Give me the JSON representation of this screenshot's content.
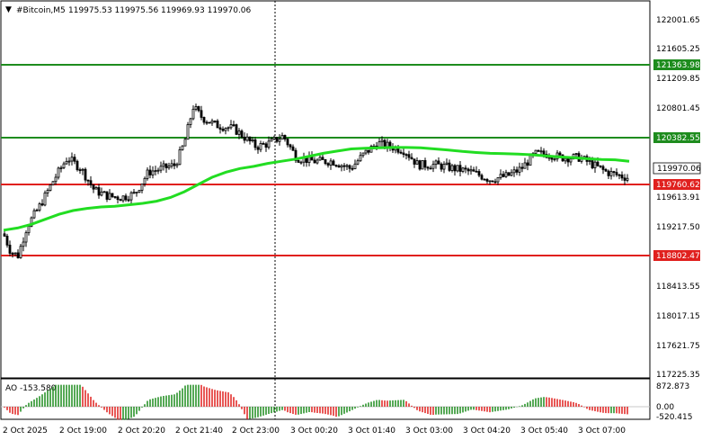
{
  "header": {
    "symbol": "#Bitcoin,M5",
    "ohlc": "119975.53 119975.56 119969.93 119970.06"
  },
  "price_axis": {
    "labels": [
      "122001.65",
      "121605.25",
      "121209.85",
      "120801.45",
      "119613.91",
      "119217.50",
      "118413.55",
      "118017.15",
      "117621.75",
      "117225.35"
    ]
  },
  "levels": [
    {
      "name": "resistance-upper",
      "price": 121363.98,
      "label": "121363.98",
      "color": "#1e8c1e"
    },
    {
      "name": "resistance-lower",
      "price": 120382.55,
      "label": "120382.55",
      "color": "#1e8c1e"
    },
    {
      "name": "support-upper",
      "price": 119760.62,
      "label": "119760.62",
      "color": "#e0201e"
    },
    {
      "name": "support-lower",
      "price": 118802.47,
      "label": "118802.47",
      "color": "#e0201e"
    }
  ],
  "current_price": {
    "label": "119970.06",
    "price": 119970.06
  },
  "time_axis": {
    "labels": [
      "2 Oct 2025",
      "2 Oct 19:00",
      "2 Oct 20:20",
      "2 Oct 21:40",
      "2 Oct 23:00",
      "3 Oct 00:20",
      "3 Oct 01:40",
      "3 Oct 03:00",
      "3 Oct 04:20",
      "3 Oct 05:40",
      "3 Oct 07:00"
    ]
  },
  "ao_panel": {
    "title": "AO -153.580",
    "labels": [
      "872.873",
      "0.00",
      "-520.415"
    ]
  },
  "colors": {
    "ma": "#22dd22",
    "ao_up": "#1e8c1e",
    "ao_down": "#e0201e",
    "candle": "#000000"
  },
  "chart_data": {
    "type": "candlestick",
    "ylim": [
      117225.35,
      122200
    ],
    "ma_series": [
      119250,
      119280,
      119330,
      119400,
      119470,
      119520,
      119550,
      119570,
      119580,
      119600,
      119620,
      119650,
      119700,
      119780,
      119880,
      119980,
      120050,
      120100,
      120130,
      120170,
      120200,
      120230,
      120270,
      120310,
      120340,
      120370,
      120380,
      120385,
      120390,
      120390,
      120385,
      120370,
      120355,
      120335,
      120320,
      120310,
      120305,
      120300,
      120290,
      120275,
      120260,
      120250,
      120235,
      120225,
      120220,
      120200
    ]
  }
}
